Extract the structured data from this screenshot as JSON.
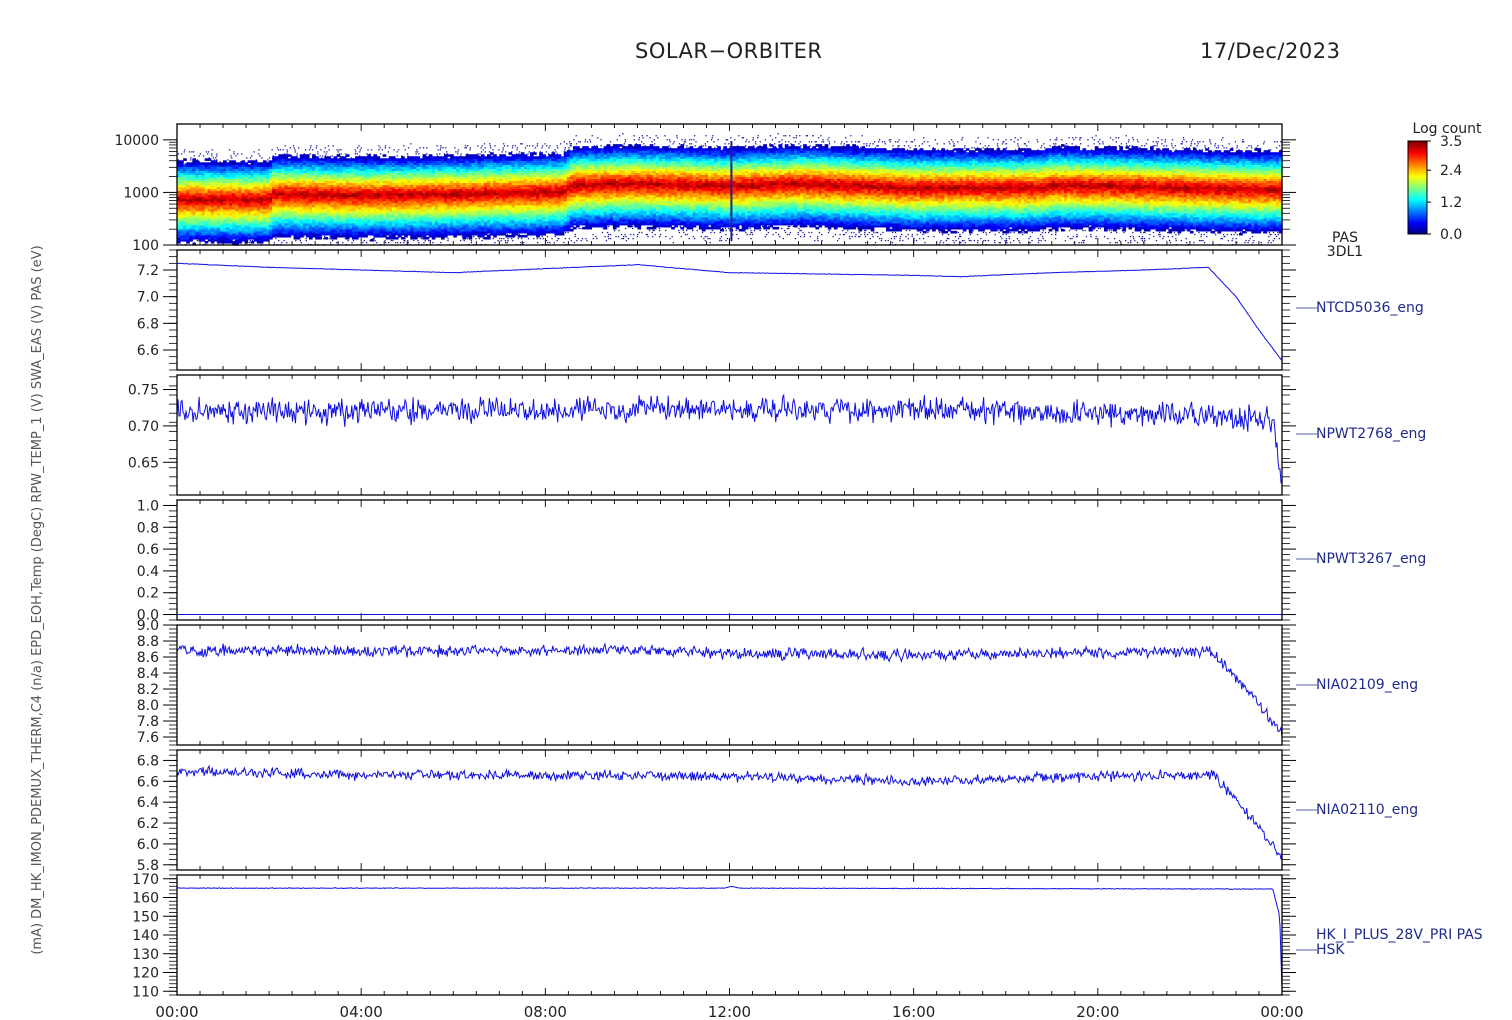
{
  "header": {
    "mission": "SOLAR−ORBITER",
    "date": "17/Dec/2023"
  },
  "time_axis": {
    "tick_labels": [
      "00:00",
      "04:00",
      "08:00",
      "12:00",
      "16:00",
      "20:00",
      "00:00"
    ],
    "start_hour": 0,
    "end_hour": 24
  },
  "left_axis_title": "(mA) DM_HK_IMON_PDEMUX_THERM,C4 (n/a) EPD_EOH,Temp (DegC) RPW_TEMP_1 (V) SWA_EAS (V) PAS (eV)",
  "colorbar": {
    "title": "Log count",
    "ticks": [
      "3.5",
      "2.4",
      "1.2",
      "0.0"
    ],
    "min": 0.0,
    "max": 3.5
  },
  "colors": {
    "trace": "#1010e0",
    "axis": "#000000",
    "label": "#1f2a8a"
  },
  "chart_data": [
    {
      "type": "heatmap",
      "panel": "spectrogram",
      "label_lines": [
        "PAS",
        "3DL1"
      ],
      "yscale": "log",
      "ylim": [
        100,
        20000
      ],
      "ytick_labels": [
        "10000",
        "1000",
        "100"
      ],
      "ytick_values": [
        10000,
        1000,
        100
      ],
      "peak_energy_profile": {
        "hours": [
          0,
          2,
          2.1,
          4,
          6,
          8.4,
          8.6,
          10,
          12,
          13.5,
          16,
          18.8,
          19,
          21,
          22.5,
          23.9
        ],
        "energy_ev": [
          750,
          750,
          950,
          900,
          950,
          1050,
          1400,
          1500,
          1350,
          1500,
          1250,
          1250,
          1400,
          1300,
          1200,
          1150
        ]
      }
    },
    {
      "type": "line",
      "label": "NTCD5036_eng",
      "ylim": [
        6.45,
        7.35
      ],
      "ytick_labels": [
        "7.2",
        "7.0",
        "6.8",
        "6.6"
      ],
      "ytick_values": [
        7.2,
        7.0,
        6.8,
        6.6
      ],
      "x": [
        0,
        2,
        4,
        6,
        8,
        10,
        12,
        14,
        16,
        17,
        19,
        21,
        22.4,
        23,
        23.5,
        24
      ],
      "y": [
        7.25,
        7.22,
        7.2,
        7.18,
        7.21,
        7.24,
        7.18,
        7.17,
        7.16,
        7.15,
        7.18,
        7.2,
        7.22,
        7.0,
        6.75,
        6.52
      ],
      "noise": 0.003
    },
    {
      "type": "line",
      "label": "NPWT2768_eng",
      "ylim": [
        0.605,
        0.77
      ],
      "ytick_labels": [
        "0.75",
        "0.70",
        "0.65"
      ],
      "ytick_values": [
        0.75,
        0.7,
        0.65
      ],
      "x": [
        0,
        4,
        8,
        10,
        12,
        14,
        18,
        22,
        23.8,
        24
      ],
      "y": [
        0.72,
        0.72,
        0.722,
        0.724,
        0.724,
        0.722,
        0.72,
        0.715,
        0.708,
        0.62
      ],
      "noise": 0.022
    },
    {
      "type": "line",
      "label": "NPWT3267_eng",
      "ylim": [
        -0.05,
        1.05
      ],
      "ytick_labels": [
        "1.0",
        "0.8",
        "0.6",
        "0.4",
        "0.2",
        "0.0"
      ],
      "ytick_values": [
        1.0,
        0.8,
        0.6,
        0.4,
        0.2,
        0.0
      ],
      "x": [
        0,
        24
      ],
      "y": [
        0.0,
        0.0
      ],
      "noise": 0.0
    },
    {
      "type": "line",
      "label": "NIA02109_eng",
      "ylim": [
        7.5,
        9.0
      ],
      "ytick_labels": [
        "9.0",
        "8.8",
        "8.6",
        "8.4",
        "8.2",
        "8.0",
        "7.8",
        "7.6"
      ],
      "ytick_values": [
        9.0,
        8.8,
        8.6,
        8.4,
        8.2,
        8.0,
        7.8,
        7.6
      ],
      "x": [
        0,
        4,
        8,
        10,
        12,
        16,
        20,
        22.5,
        23,
        24
      ],
      "y": [
        8.68,
        8.68,
        8.68,
        8.68,
        8.65,
        8.62,
        8.66,
        8.66,
        8.35,
        7.65
      ],
      "noise": 0.09
    },
    {
      "type": "line",
      "label": "NIA02110_eng",
      "ylim": [
        5.75,
        6.9
      ],
      "ytick_labels": [
        "6.8",
        "6.6",
        "6.4",
        "6.2",
        "6.0",
        "5.8"
      ],
      "ytick_values": [
        6.8,
        6.6,
        6.4,
        6.2,
        6.0,
        5.8
      ],
      "x": [
        0,
        4,
        8,
        12,
        16,
        20,
        22.5,
        23,
        24
      ],
      "y": [
        6.7,
        6.66,
        6.66,
        6.65,
        6.6,
        6.65,
        6.66,
        6.42,
        5.88
      ],
      "noise": 0.06
    },
    {
      "type": "line",
      "label_lines": [
        "HK_I_PLUS_28V_PRI PAS",
        "HSK"
      ],
      "ylim": [
        108,
        172
      ],
      "ytick_labels": [
        "170",
        "160",
        "150",
        "140",
        "130",
        "120",
        "110"
      ],
      "ytick_values": [
        170,
        160,
        150,
        140,
        130,
        120,
        110
      ],
      "x": [
        0,
        11.9,
        12.05,
        12.2,
        23.8,
        23.95,
        24
      ],
      "y": [
        165,
        165,
        166,
        165,
        164.5,
        150,
        110
      ],
      "noise": 0.25
    }
  ]
}
